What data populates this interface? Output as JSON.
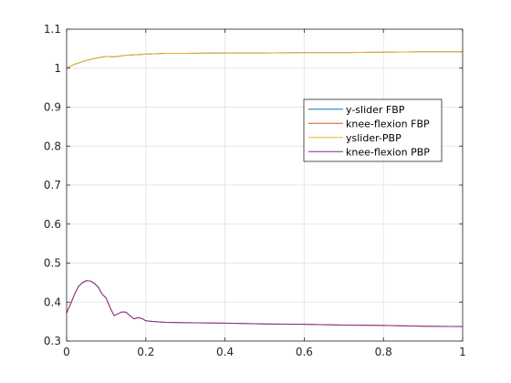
{
  "chart_data": {
    "type": "line",
    "xlim": [
      0,
      1
    ],
    "ylim": [
      0.3,
      1.1
    ],
    "x_ticks": [
      "0",
      "0.2",
      "0.4",
      "0.6",
      "0.8",
      "1"
    ],
    "y_ticks": [
      "0.3",
      "0.4",
      "0.5",
      "0.6",
      "0.7",
      "0.8",
      "0.9",
      "1",
      "1.1"
    ],
    "grid": true,
    "legend_position": "upper-right",
    "series": [
      {
        "name": "y-slider FBP",
        "color": "#0072BD",
        "x": [
          0,
          0.02,
          0.05,
          0.08,
          0.1,
          0.12,
          0.15,
          0.2,
          0.25,
          0.3,
          0.4,
          0.5,
          0.6,
          0.7,
          0.8,
          0.9,
          1.0
        ],
        "y": [
          1.0,
          1.01,
          1.02,
          1.027,
          1.03,
          1.029,
          1.033,
          1.036,
          1.038,
          1.038,
          1.039,
          1.039,
          1.04,
          1.04,
          1.041,
          1.042,
          1.042
        ]
      },
      {
        "name": "knee-flexion FBP",
        "color": "#D95319",
        "x": [
          0,
          0.01,
          0.02,
          0.03,
          0.04,
          0.05,
          0.06,
          0.07,
          0.08,
          0.09,
          0.1,
          0.11,
          0.12,
          0.13,
          0.14,
          0.15,
          0.16,
          0.17,
          0.18,
          0.19,
          0.2,
          0.22,
          0.25,
          0.3,
          0.4,
          0.5,
          0.6,
          0.7,
          0.8,
          0.9,
          1.0
        ],
        "y": [
          0.372,
          0.395,
          0.42,
          0.44,
          0.45,
          0.455,
          0.454,
          0.448,
          0.438,
          0.42,
          0.41,
          0.385,
          0.365,
          0.37,
          0.375,
          0.374,
          0.365,
          0.357,
          0.36,
          0.358,
          0.352,
          0.35,
          0.348,
          0.347,
          0.346,
          0.344,
          0.343,
          0.341,
          0.34,
          0.338,
          0.337
        ]
      },
      {
        "name": "yslider-PBP",
        "color": "#EDB120",
        "x": [
          0,
          0.02,
          0.05,
          0.08,
          0.1,
          0.12,
          0.15,
          0.2,
          0.25,
          0.3,
          0.4,
          0.5,
          0.6,
          0.7,
          0.8,
          0.9,
          1.0
        ],
        "y": [
          1.0,
          1.01,
          1.02,
          1.027,
          1.03,
          1.029,
          1.033,
          1.036,
          1.038,
          1.038,
          1.039,
          1.039,
          1.04,
          1.04,
          1.041,
          1.042,
          1.042
        ]
      },
      {
        "name": "knee-flexion PBP",
        "color": "#7E2F8E",
        "x": [
          0,
          0.01,
          0.02,
          0.03,
          0.04,
          0.05,
          0.06,
          0.07,
          0.08,
          0.09,
          0.1,
          0.11,
          0.12,
          0.13,
          0.14,
          0.15,
          0.16,
          0.17,
          0.18,
          0.19,
          0.2,
          0.22,
          0.25,
          0.3,
          0.4,
          0.5,
          0.6,
          0.7,
          0.8,
          0.9,
          1.0
        ],
        "y": [
          0.372,
          0.395,
          0.42,
          0.44,
          0.45,
          0.455,
          0.454,
          0.448,
          0.438,
          0.42,
          0.41,
          0.385,
          0.365,
          0.37,
          0.375,
          0.374,
          0.365,
          0.357,
          0.36,
          0.358,
          0.352,
          0.35,
          0.348,
          0.347,
          0.346,
          0.344,
          0.343,
          0.341,
          0.34,
          0.338,
          0.337
        ]
      }
    ]
  }
}
